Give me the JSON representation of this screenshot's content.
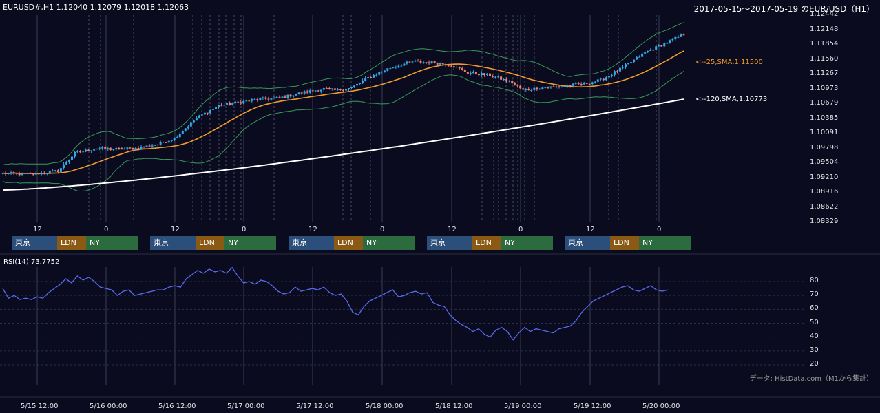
{
  "header": {
    "symbol_ohlc": "EURUSD#,H1 1.12040 1.12079 1.12018 1.12063",
    "title": "2017-05-15～2017-05-19 のEUR/USD（H1）"
  },
  "chart_data": {
    "type": "candlestick",
    "symbol": "EURUSD#",
    "timeframe": "H1",
    "ylim": [
      1.08329,
      1.12442
    ],
    "y_ticks": [
      "1.12442",
      "1.12148",
      "1.11854",
      "1.11560",
      "1.11267",
      "1.10973",
      "1.10679",
      "1.10385",
      "1.10091",
      "1.09798",
      "1.09504",
      "1.09210",
      "1.08916",
      "1.08622",
      "1.08329"
    ],
    "hour_ticks": [
      "12",
      "0",
      "12",
      "0",
      "12",
      "0",
      "12",
      "0",
      "12",
      "0"
    ],
    "date_ticks": [
      "5/15 12:00",
      "5/16 00:00",
      "5/16 12:00",
      "5/17 00:00",
      "5/17 12:00",
      "5/18 00:00",
      "5/18 12:00",
      "5/19 00:00",
      "5/19 12:00",
      "5/20 00:00"
    ],
    "sessions": [
      "東京",
      "LDN",
      "NY"
    ],
    "session_colors": {
      "tokyo": "#2c4e7a",
      "ldn": "#8a5a14",
      "ny": "#2c6b3e"
    },
    "close_anchors": [
      [
        0,
        1.093
      ],
      [
        10,
        1.0928
      ],
      [
        20,
        1.0935
      ],
      [
        26,
        1.097
      ],
      [
        34,
        1.098
      ],
      [
        40,
        1.0978
      ],
      [
        48,
        1.098
      ],
      [
        56,
        1.0988
      ],
      [
        62,
        1.1
      ],
      [
        70,
        1.104
      ],
      [
        78,
        1.1065
      ],
      [
        84,
        1.107
      ],
      [
        92,
        1.1077
      ],
      [
        100,
        1.108
      ],
      [
        108,
        1.109
      ],
      [
        116,
        1.1098
      ],
      [
        120,
        1.1095
      ],
      [
        126,
        1.11
      ],
      [
        132,
        1.112
      ],
      [
        140,
        1.114
      ],
      [
        148,
        1.1152
      ],
      [
        156,
        1.115
      ],
      [
        162,
        1.1145
      ],
      [
        168,
        1.113
      ],
      [
        176,
        1.1125
      ],
      [
        184,
        1.111
      ],
      [
        188,
        1.1095
      ],
      [
        194,
        1.11
      ],
      [
        202,
        1.1103
      ],
      [
        210,
        1.1108
      ],
      [
        216,
        1.1115
      ],
      [
        224,
        1.114
      ],
      [
        232,
        1.117
      ],
      [
        240,
        1.119
      ],
      [
        246,
        1.1206
      ]
    ],
    "sma25": {
      "name": "SMA 25",
      "last": 1.115,
      "color": "#f39c2c"
    },
    "sma120": {
      "name": "SMA 120",
      "last": 1.10773,
      "color": "#ffffff"
    },
    "bollinger_color": "#3a9a5c",
    "bull_color": "#33a8e8",
    "bear_color": "#f08070",
    "rsi": {
      "title": "RSI(14) 73.7752",
      "period": 14,
      "last": 73.7752,
      "ylim": [
        20,
        90
      ],
      "ticks": [
        "80",
        "70",
        "60",
        "50",
        "40",
        "30",
        "20"
      ],
      "color": "#5b6cf0",
      "values": [
        75,
        68,
        70,
        67,
        68,
        67,
        69,
        68,
        72,
        75,
        78,
        82,
        79,
        84,
        81,
        83,
        80,
        76,
        75,
        74,
        70,
        73,
        74,
        70,
        71,
        72,
        73,
        74,
        74,
        76,
        77,
        76,
        82,
        85,
        88,
        86,
        89,
        87,
        88,
        86,
        90,
        84,
        79,
        80,
        78,
        81,
        80,
        77,
        73,
        71,
        72,
        76,
        73,
        74,
        75,
        74,
        76,
        72,
        70,
        71,
        66,
        58,
        56,
        62,
        66,
        68,
        70,
        72,
        74,
        69,
        70,
        72,
        73,
        71,
        72,
        65,
        63,
        62,
        56,
        52,
        49,
        47,
        44,
        46,
        42,
        40,
        45,
        47,
        44,
        38,
        43,
        47,
        44,
        46,
        45,
        44,
        43,
        46,
        47,
        48,
        52,
        58,
        62,
        66,
        68,
        70,
        72,
        74,
        76,
        77,
        74,
        73,
        75,
        77,
        74,
        73,
        74
      ]
    }
  },
  "labels": {
    "sma25_label": "<--25,SMA,1.11500",
    "sma120_label": "<--120,SMA,1.10773",
    "source": "データ: HistData.com（M1から集計）"
  }
}
